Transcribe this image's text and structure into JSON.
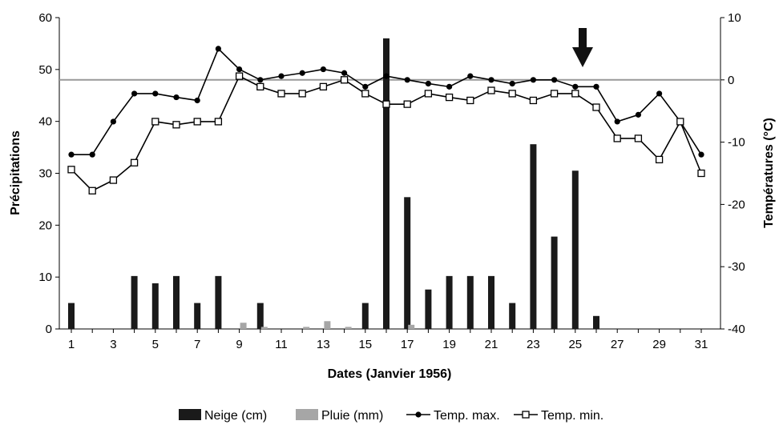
{
  "chart_data": {
    "type": "bar+line",
    "xlabel": "Dates (Janvier 1956)",
    "ylabel_left": "Précipitations",
    "ylabel_right": "Températures (°C)",
    "x": [
      1,
      2,
      3,
      4,
      5,
      6,
      7,
      8,
      9,
      10,
      11,
      12,
      13,
      14,
      15,
      16,
      17,
      18,
      19,
      20,
      21,
      22,
      23,
      24,
      25,
      26,
      27,
      28,
      29,
      30,
      31
    ],
    "x_tick_labels": [
      "1",
      "3",
      "5",
      "7",
      "9",
      "11",
      "13",
      "15",
      "17",
      "19",
      "21",
      "23",
      "25",
      "27",
      "29",
      "31"
    ],
    "ylim_left": [
      0,
      60
    ],
    "yticks_left": [
      "0",
      "10",
      "20",
      "30",
      "40",
      "50",
      "60"
    ],
    "ylim_right": [
      -40,
      10
    ],
    "yticks_right": [
      "-40",
      "-30",
      "-20",
      "-10",
      "0",
      "10"
    ],
    "reference_line_temperature": 0,
    "annotation": "arrow-down at day 25",
    "colors": {
      "snow": "#1a1a1a",
      "rain": "#a6a6a6",
      "ref_line": "#999999",
      "lines": "#000000"
    },
    "series": [
      {
        "name": "Neige (cm)",
        "kind": "bar",
        "axis": "left",
        "values": [
          5,
          0,
          0,
          10.2,
          8.8,
          10.2,
          5,
          10.2,
          0,
          5,
          0,
          0,
          0,
          0,
          5,
          56,
          25.4,
          7.6,
          10.2,
          10.2,
          10.2,
          5,
          35.6,
          17.8,
          30.5,
          2.5,
          0,
          0,
          0,
          0,
          0
        ]
      },
      {
        "name": "Pluie (mm)",
        "kind": "bar",
        "axis": "left",
        "values": [
          0,
          0,
          0,
          0,
          0,
          0,
          0,
          0,
          1.2,
          0.4,
          0,
          0.4,
          1.5,
          0.4,
          0,
          0,
          0.8,
          0,
          0,
          0,
          0,
          0,
          0,
          0,
          0,
          0,
          0,
          0,
          0,
          0,
          0
        ]
      },
      {
        "name": "Temp. max.",
        "kind": "line",
        "marker": "filled-circle",
        "axis": "right",
        "values": [
          -12,
          -12,
          -6.7,
          -2.2,
          -2.2,
          -2.8,
          -3.3,
          5,
          1.7,
          0,
          0.6,
          1.1,
          1.7,
          1.1,
          -1.1,
          0.6,
          0,
          -0.6,
          -1.1,
          0.6,
          0,
          -0.6,
          0,
          0,
          -1.1,
          -1.1,
          -6.7,
          -5.6,
          -2.2,
          -6.7,
          -12
        ]
      },
      {
        "name": "Temp. min.",
        "kind": "line",
        "marker": "open-square",
        "axis": "right",
        "values": [
          -14.4,
          -17.8,
          -16.1,
          -13.3,
          -6.7,
          -7.2,
          -6.7,
          -6.7,
          0.6,
          -1.1,
          -2.2,
          -2.2,
          -1.1,
          0,
          -2.2,
          -3.9,
          -3.9,
          -2.2,
          -2.8,
          -3.3,
          -1.7,
          -2.2,
          -3.3,
          -2.2,
          -2.2,
          -4.4,
          -9.4,
          -9.4,
          -12.8,
          -6.7,
          -15
        ]
      }
    ]
  }
}
